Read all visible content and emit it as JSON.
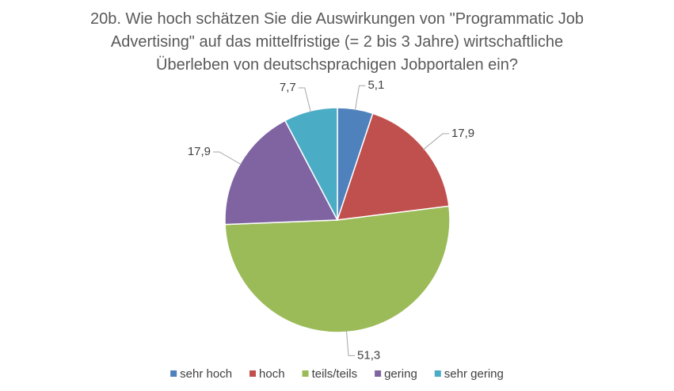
{
  "chart_data": {
    "type": "pie",
    "title": "20b. Wie hoch schätzen Sie die Auswirkungen von \"Programmatic Job\nAdvertising\" auf das mittelfristige (= 2 bis 3 Jahre) wirtschaftliche\nÜberleben von deutschsprachigen Jobportalen ein?",
    "categories": [
      "sehr hoch",
      "hoch",
      "teils/teils",
      "gering",
      "sehr gering"
    ],
    "values": [
      5.1,
      17.9,
      51.3,
      17.9,
      7.7
    ],
    "value_labels": [
      "5,1",
      "17,9",
      "51,3",
      "17,9",
      "7,7"
    ],
    "colors": [
      "#4f81bd",
      "#c0504d",
      "#9bbb59",
      "#8064a2",
      "#4bacc6"
    ],
    "legend": "bottom"
  }
}
